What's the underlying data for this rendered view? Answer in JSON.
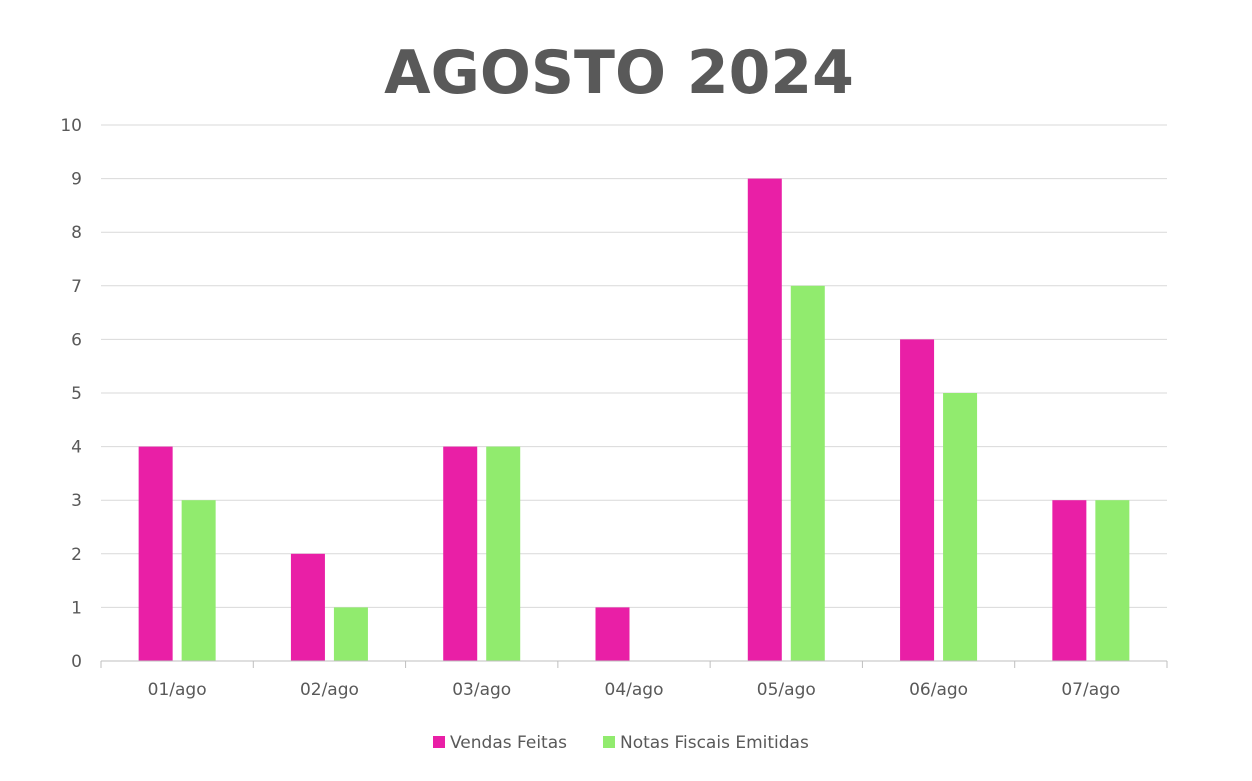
{
  "chart_data": {
    "type": "bar",
    "title": "AGOSTO 2024",
    "categories": [
      "01/ago",
      "02/ago",
      "03/ago",
      "04/ago",
      "05/ago",
      "06/ago",
      "07/ago"
    ],
    "series": [
      {
        "name": "Vendas Feitas",
        "color": "#E91FA6",
        "values": [
          4,
          2,
          4,
          1,
          9,
          6,
          3
        ]
      },
      {
        "name": "Notas Fiscais Emitidas",
        "color": "#91EB6E",
        "values": [
          3,
          1,
          4,
          0,
          7,
          5,
          3
        ]
      }
    ],
    "ylim": [
      0,
      10
    ],
    "yticks": [
      "0",
      "1",
      "2",
      "3",
      "4",
      "5",
      "6",
      "7",
      "8",
      "9",
      "10"
    ],
    "grid": true,
    "legend_position": "bottom"
  }
}
